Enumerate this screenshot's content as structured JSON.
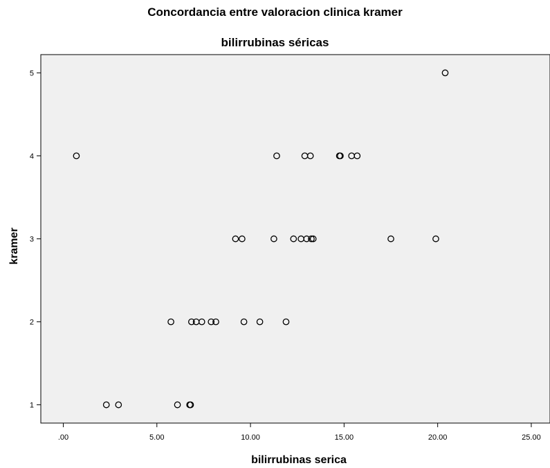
{
  "chart_data": {
    "type": "scatter",
    "title": "Concordancia entre valoracion clinica kramer",
    "subtitle": "bilirrubinas séricas",
    "xlabel": "bilirrubinas serica",
    "ylabel": "kramer",
    "xlim": [
      -1.2,
      26.0
    ],
    "ylim": [
      0.78,
      5.22
    ],
    "xticks": [
      ".00",
      "5.00",
      "10.00",
      "15.00",
      "20.00",
      "25.00"
    ],
    "yticks": [
      "1",
      "2",
      "3",
      "4",
      "5"
    ],
    "grid": false,
    "points": [
      {
        "x": 0.7,
        "y": 4
      },
      {
        "x": 11.4,
        "y": 4
      },
      {
        "x": 12.9,
        "y": 4
      },
      {
        "x": 13.2,
        "y": 4
      },
      {
        "x": 14.75,
        "y": 4
      },
      {
        "x": 14.8,
        "y": 4
      },
      {
        "x": 15.4,
        "y": 4
      },
      {
        "x": 15.7,
        "y": 4
      },
      {
        "x": 20.4,
        "y": 5
      },
      {
        "x": 9.2,
        "y": 3
      },
      {
        "x": 9.55,
        "y": 3
      },
      {
        "x": 11.25,
        "y": 3
      },
      {
        "x": 12.3,
        "y": 3
      },
      {
        "x": 12.7,
        "y": 3
      },
      {
        "x": 13.0,
        "y": 3
      },
      {
        "x": 13.25,
        "y": 3
      },
      {
        "x": 13.35,
        "y": 3
      },
      {
        "x": 17.5,
        "y": 3
      },
      {
        "x": 19.9,
        "y": 3
      },
      {
        "x": 5.75,
        "y": 2
      },
      {
        "x": 6.85,
        "y": 2
      },
      {
        "x": 7.1,
        "y": 2
      },
      {
        "x": 7.4,
        "y": 2
      },
      {
        "x": 7.9,
        "y": 2
      },
      {
        "x": 8.15,
        "y": 2
      },
      {
        "x": 9.65,
        "y": 2
      },
      {
        "x": 10.5,
        "y": 2
      },
      {
        "x": 11.9,
        "y": 2
      },
      {
        "x": 2.3,
        "y": 1
      },
      {
        "x": 2.95,
        "y": 1
      },
      {
        "x": 6.1,
        "y": 1
      },
      {
        "x": 6.75,
        "y": 1
      },
      {
        "x": 6.8,
        "y": 1
      }
    ]
  }
}
